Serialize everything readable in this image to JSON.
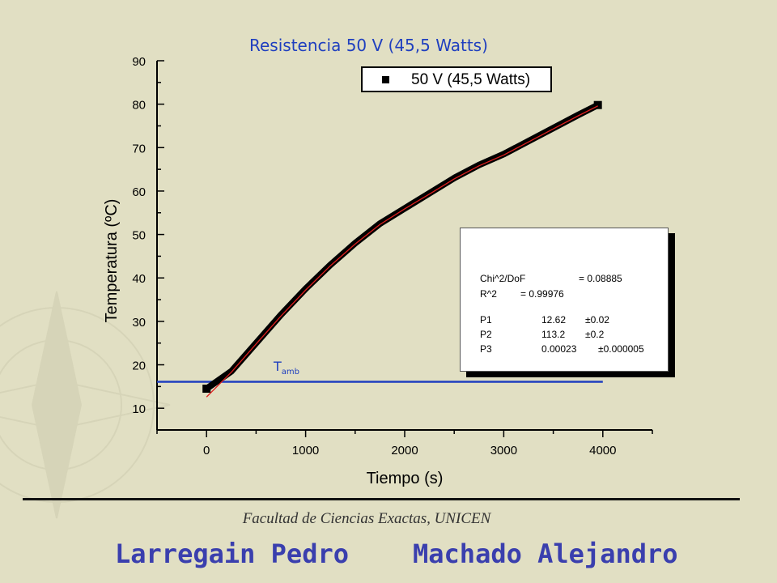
{
  "header": {
    "chart_title": "Resistencia 50 V  (45,5 Watts)"
  },
  "legend": {
    "entry": "50 V (45,5 Watts)",
    "marker_color": "#000000"
  },
  "fit_stats": {
    "chi_label": "Chi^2/DoF",
    "chi_value": "= 0.08885",
    "r_label": "R^2",
    "r_value": "=  0.99976",
    "params": [
      {
        "name": "P1",
        "value": "12.62",
        "err": "±0.02"
      },
      {
        "name": "P2",
        "value": "113.2",
        "err": "±0.2"
      },
      {
        "name": "P3",
        "value": "0.00023",
        "err": "±0.000005"
      }
    ]
  },
  "annotation": {
    "tamb_main": "T",
    "tamb_sub": "amb"
  },
  "footer": {
    "faculty": "Facultad de Ciencias Exactas, UNICEN",
    "author1": "Larregain Pedro",
    "author2": "Machado Alejandro"
  },
  "chart_data": {
    "type": "line",
    "title": "Resistencia 50 V  (45,5 Watts)",
    "xlabel": "Tiempo (s)",
    "ylabel": "Temperatura (ºC)",
    "xlim": [
      -500,
      4500
    ],
    "ylim": [
      5,
      90
    ],
    "x_ticks": [
      0,
      1000,
      2000,
      3000,
      4000
    ],
    "y_ticks": [
      10,
      20,
      30,
      40,
      50,
      60,
      70,
      80,
      90
    ],
    "legend_position": "top-right",
    "grid": false,
    "series": [
      {
        "name": "50 V (45,5 Watts)",
        "color": "#000000",
        "x": [
          0,
          250,
          500,
          750,
          1000,
          1250,
          1500,
          1750,
          2000,
          2250,
          2500,
          2750,
          3000,
          3250,
          3500,
          3750,
          3950
        ],
        "y": [
          14.5,
          18.5,
          25,
          31.5,
          37.5,
          43,
          48,
          52.5,
          56,
          59.5,
          63,
          66,
          68.5,
          71.5,
          74.5,
          77.5,
          79.8
        ]
      },
      {
        "name": "fit",
        "color": "#e02020",
        "x": [
          0,
          250,
          500,
          750,
          1000,
          1250,
          1500,
          1750,
          2000,
          2250,
          2500,
          2750,
          3000,
          3250,
          3500,
          3750,
          3950
        ],
        "y": [
          12.6,
          18.3,
          24.8,
          31.2,
          37.2,
          42.8,
          47.8,
          52.3,
          55.9,
          59.3,
          62.8,
          65.8,
          68.3,
          71.3,
          74.3,
          77.3,
          79.6
        ]
      },
      {
        "name": "T amb",
        "color": "#1f3fbf",
        "x": [
          -500,
          4000
        ],
        "y": [
          16.1,
          16.1
        ]
      }
    ]
  }
}
